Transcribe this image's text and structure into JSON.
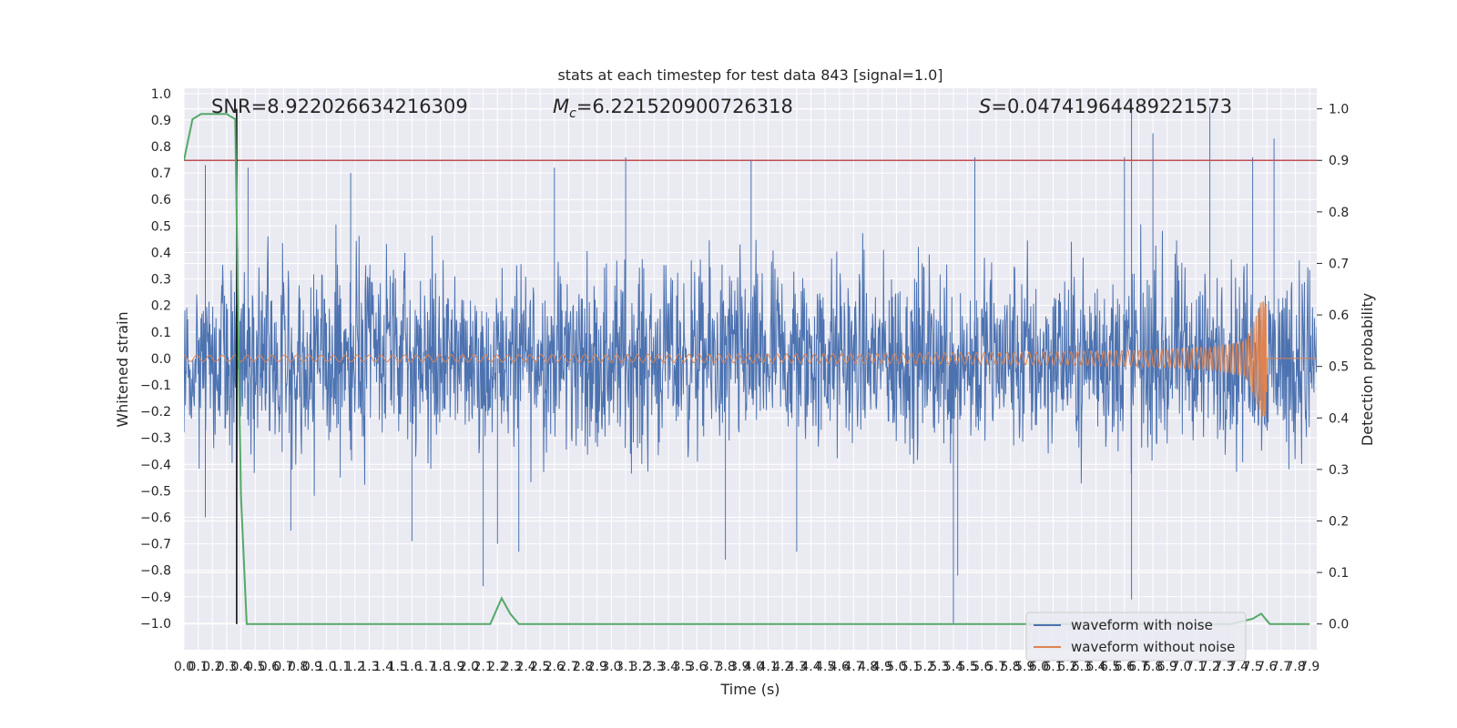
{
  "chart_data": {
    "type": "line",
    "title": "stats at each timestep for test data 843 [signal=1.0]",
    "xlabel": "Time (s)",
    "ylabel": "Whitened strain",
    "ylabel_right": "Detection probability",
    "xlim": [
      0.0,
      7.95
    ],
    "ylim": [
      -1.1,
      1.02
    ],
    "ylim_right": [
      -0.05,
      1.04
    ],
    "x_ticks": [
      "0.0",
      "0.1",
      "0.2",
      "0.3",
      "0.4",
      "0.5",
      "0.6",
      "0.7",
      "0.8",
      "0.9",
      "1.0",
      "1.1",
      "1.2",
      "1.3",
      "1.4",
      "1.5",
      "1.6",
      "1.7",
      "1.8",
      "1.9",
      "2.0",
      "2.1",
      "2.2",
      "2.3",
      "2.4",
      "2.5",
      "2.6",
      "2.7",
      "2.8",
      "2.9",
      "3.0",
      "3.1",
      "3.2",
      "3.3",
      "3.4",
      "3.5",
      "3.6",
      "3.7",
      "3.8",
      "3.9",
      "4.0",
      "4.1",
      "4.2",
      "4.3",
      "4.4",
      "4.5",
      "4.6",
      "4.7",
      "4.8",
      "4.9",
      "5.0",
      "5.1",
      "5.2",
      "5.3",
      "5.4",
      "5.5",
      "5.6",
      "5.7",
      "5.8",
      "5.9",
      "6.0",
      "6.1",
      "6.2",
      "6.3",
      "6.4",
      "6.5",
      "6.6",
      "6.7",
      "6.8",
      "6.9",
      "7.0",
      "7.1",
      "7.2",
      "7.3",
      "7.4",
      "7.5",
      "7.6",
      "7.7",
      "7.8",
      "7.9"
    ],
    "y_ticks_left": [
      "−1.0",
      "−0.9",
      "−0.8",
      "−0.7",
      "−0.6",
      "−0.5",
      "−0.4",
      "−0.3",
      "−0.2",
      "−0.1",
      "0.0",
      "0.1",
      "0.2",
      "0.3",
      "0.4",
      "0.5",
      "0.6",
      "0.7",
      "0.8",
      "0.9",
      "1.0"
    ],
    "y_ticks_right": [
      "0.0",
      "0.1",
      "0.2",
      "0.3",
      "0.4",
      "0.5",
      "0.6",
      "0.7",
      "0.8",
      "0.9",
      "1.0"
    ],
    "annotations": {
      "snr": "SNR=8.922026634216309",
      "mc_symbol": "M",
      "mc_sub": "c",
      "mc_value": "=6.221520900726318",
      "s_symbol": "S",
      "s_value": "=0.04741964489221573"
    },
    "threshold": 0.9,
    "marker_time": 0.37,
    "series": [
      {
        "name": "waveform with noise",
        "color": "#4c72b0",
        "description_axis": "left",
        "noise_envelope": [
          -0.45,
          0.45
        ],
        "spikes": [
          [
            0.15,
            0.73
          ],
          [
            0.45,
            0.72
          ],
          [
            1.17,
            0.7
          ],
          [
            2.6,
            0.72
          ],
          [
            3.1,
            0.76
          ],
          [
            3.98,
            0.75
          ],
          [
            5.55,
            0.76
          ],
          [
            6.6,
            0.76
          ],
          [
            6.65,
            0.96
          ],
          [
            6.8,
            0.85
          ],
          [
            7.2,
            0.95
          ],
          [
            7.5,
            0.76
          ],
          [
            7.65,
            0.83
          ],
          [
            2.1,
            -0.86
          ],
          [
            2.2,
            -0.7
          ],
          [
            2.35,
            -0.73
          ],
          [
            3.8,
            -0.76
          ],
          [
            4.3,
            -0.73
          ],
          [
            5.4,
            -1.0
          ],
          [
            5.43,
            -0.82
          ],
          [
            6.65,
            -0.91
          ],
          [
            0.15,
            -0.6
          ],
          [
            0.75,
            -0.65
          ],
          [
            1.6,
            -0.69
          ]
        ]
      },
      {
        "name": "waveform without noise",
        "color": "#dd8452",
        "description_axis": "left",
        "chirp_end_time": 7.6,
        "chirp_peak_amplitude": 0.22
      },
      {
        "name": "detection probability",
        "color": "#55a868",
        "description_axis": "right",
        "x": [
          0.0,
          0.06,
          0.12,
          0.2,
          0.3,
          0.36,
          0.38,
          0.4,
          0.44,
          0.5,
          2.0,
          2.15,
          2.23,
          2.29,
          2.35,
          2.45,
          7.0,
          7.35,
          7.5,
          7.56,
          7.62,
          7.7,
          7.9
        ],
        "y": [
          0.9,
          0.98,
          0.99,
          0.99,
          0.99,
          0.98,
          0.6,
          0.25,
          0.0,
          0.0,
          0.0,
          0.0,
          0.05,
          0.02,
          0.0,
          0.0,
          0.0,
          0.0,
          0.01,
          0.02,
          0.0,
          0.0,
          0.0
        ]
      }
    ],
    "threshold_color": "#c44e52",
    "marker_color": "#000000",
    "legend": [
      "waveform with noise",
      "waveform without noise"
    ],
    "legend_position": "lower-right",
    "grid": true
  }
}
